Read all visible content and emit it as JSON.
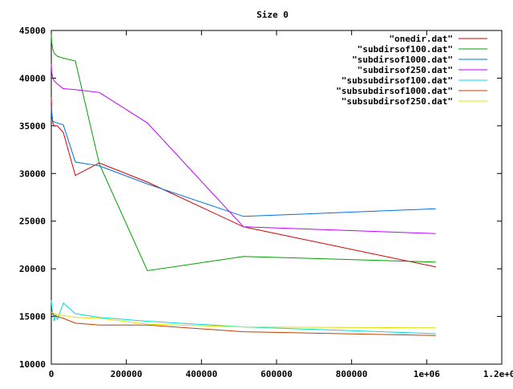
{
  "chart_data": {
    "type": "line",
    "title": "Size 0",
    "xlabel": "",
    "ylabel": "",
    "xlim": [
      0,
      1200000
    ],
    "ylim": [
      10000,
      45000
    ],
    "grid": false,
    "legend_position": "top-right",
    "x_ticks": [
      {
        "value": 0,
        "label": "0"
      },
      {
        "value": 200000,
        "label": "200000"
      },
      {
        "value": 400000,
        "label": "400000"
      },
      {
        "value": 600000,
        "label": "600000"
      },
      {
        "value": 800000,
        "label": "800000"
      },
      {
        "value": 1000000,
        "label": "1e+06"
      },
      {
        "value": 1200000,
        "label": "1.2e+06"
      }
    ],
    "y_ticks": [
      {
        "value": 10000,
        "label": "10000"
      },
      {
        "value": 15000,
        "label": "15000"
      },
      {
        "value": 20000,
        "label": "20000"
      },
      {
        "value": 25000,
        "label": "25000"
      },
      {
        "value": 30000,
        "label": "30000"
      },
      {
        "value": 35000,
        "label": "35000"
      },
      {
        "value": 40000,
        "label": "40000"
      },
      {
        "value": 45000,
        "label": "45000"
      }
    ],
    "series": [
      {
        "name": "\"onedir.dat\"",
        "color": "#d40000",
        "x": [
          1,
          1000,
          4000,
          8000,
          16000,
          32000,
          64000,
          128000,
          256000,
          512000,
          1024000
        ],
        "y": [
          38000,
          36500,
          35300,
          35000,
          35000,
          34300,
          29800,
          31100,
          29100,
          24400,
          20200
        ]
      },
      {
        "name": "\"subdirsof100.dat\"",
        "color": "#00a000",
        "x": [
          1,
          1000,
          4000,
          8000,
          16000,
          32000,
          64000,
          128000,
          256000,
          512000,
          1024000
        ],
        "y": [
          44600,
          43700,
          43000,
          42600,
          42300,
          42100,
          41800,
          31000,
          19800,
          21300,
          20700
        ]
      },
      {
        "name": "\"subdirsof1000.dat\"",
        "color": "#0070e0",
        "x": [
          1,
          1000,
          4000,
          8000,
          16000,
          32000,
          64000,
          128000,
          256000,
          512000,
          1024000
        ],
        "y": [
          37000,
          36000,
          35500,
          35400,
          35300,
          35100,
          31200,
          30800,
          28900,
          25500,
          26300
        ]
      },
      {
        "name": "\"subdirsof250.dat\"",
        "color": "#c000ff",
        "x": [
          1,
          1000,
          4000,
          8000,
          16000,
          32000,
          64000,
          128000,
          256000,
          512000,
          1024000
        ],
        "y": [
          41500,
          40600,
          40000,
          39700,
          39400,
          38900,
          38800,
          38500,
          35300,
          24400,
          23700
        ]
      },
      {
        "name": "\"subsubdirsof100.dat\"",
        "color": "#00dcdc",
        "x": [
          1,
          2000,
          8000,
          12000,
          16000,
          32000,
          64000,
          128000,
          256000,
          512000,
          1024000
        ],
        "y": [
          16700,
          15800,
          14500,
          15200,
          14700,
          16400,
          15300,
          14900,
          14500,
          13900,
          13200
        ]
      },
      {
        "name": "\"subsubdirsof1000.dat\"",
        "color": "#c04000",
        "x": [
          1,
          4000,
          8000,
          16000,
          32000,
          64000,
          128000,
          256000,
          512000,
          1024000
        ],
        "y": [
          15200,
          15300,
          15100,
          15000,
          14800,
          14300,
          14100,
          14100,
          13400,
          13000
        ]
      },
      {
        "name": "\"subsubdirsof250.dat\"",
        "color": "#e0e000",
        "x": [
          1,
          4000,
          8000,
          16000,
          32000,
          64000,
          128000,
          256000,
          512000,
          1024000
        ],
        "y": [
          15400,
          15400,
          15300,
          15200,
          15100,
          14900,
          14800,
          14200,
          13900,
          13800
        ]
      }
    ]
  }
}
